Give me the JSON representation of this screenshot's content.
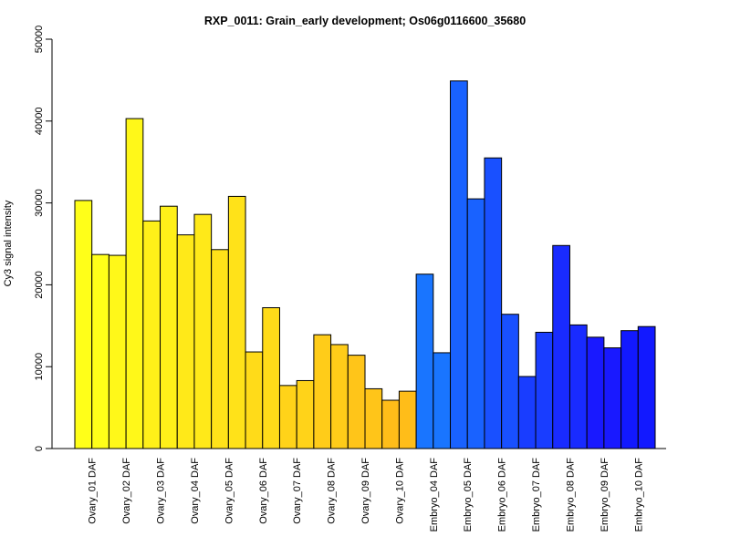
{
  "chart_data": {
    "type": "bar",
    "title": "RXP_0011: Grain_early development; Os06g0116600_35680",
    "xlabel": "",
    "ylabel": "Cy3 signal intensity",
    "ylim": [
      0,
      50000
    ],
    "yticks": [
      0,
      10000,
      20000,
      30000,
      40000,
      50000
    ],
    "grid": false,
    "categories": [
      "Ovary_01 DAF",
      "Ovary_02 DAF",
      "Ovary_03 DAF",
      "Ovary_04 DAF",
      "Ovary_05 DAF",
      "Ovary_06 DAF",
      "Ovary_07 DAF",
      "Ovary_08 DAF",
      "Ovary_09 DAF",
      "Ovary_10 DAF",
      "Embryo_04 DAF",
      "Embryo_05 DAF",
      "Embryo_06 DAF",
      "Embryo_07 DAF",
      "Embryo_08 DAF",
      "Embryo_09 DAF",
      "Embryo_10 DAF"
    ],
    "series": [
      {
        "values": [
          30300,
          23600,
          27800,
          26100,
          24300,
          11800,
          7700,
          13900,
          11400,
          5900,
          21300,
          44900,
          35500,
          8800,
          24800,
          13600,
          14400
        ]
      },
      {
        "values": [
          23700,
          40300,
          29600,
          28600,
          30800,
          17200,
          8300,
          12700,
          7300,
          7000,
          11700,
          30500,
          16400,
          14200,
          15100,
          12300,
          14900
        ]
      }
    ],
    "colors": [
      "#FFFF19",
      "#FFF819",
      "#FFF019",
      "#FFE919",
      "#FFE219",
      "#FFDB19",
      "#FFD319",
      "#FFCC19",
      "#FFC519",
      "#FFBD19",
      "#1975FF",
      "#1962FF",
      "#1950FF",
      "#193DFF",
      "#192BFF",
      "#1919FF",
      "#1219FF"
    ]
  }
}
